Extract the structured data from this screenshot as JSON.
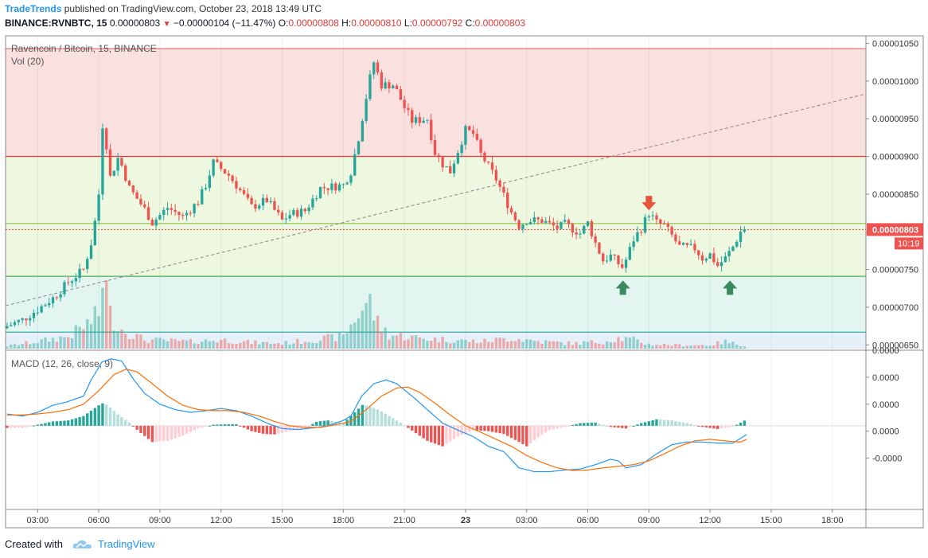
{
  "header": {
    "brand": "TradeTrends",
    "published": "published on TradingView.com, October 23, 2018 13:49 UTC",
    "symbol": "BINANCE:RVNBTC, 15",
    "last": "0.00000803",
    "change_arrow": "▼",
    "change": "−0.00000104 (−11.47%)",
    "o_label": "O:",
    "o": "0.00000808",
    "h_label": "H:",
    "h": "0.00000810",
    "l_label": "L:",
    "l": "0.00000792",
    "c_label": "C:",
    "c": "0.00000803"
  },
  "chart_data": [
    {
      "type": "candlestick",
      "title": "Ravencoin / Bitcoin, 15, BINANCE",
      "volume_label": "Vol (20)",
      "y_ticks": [
        "0.00001050",
        "0.00001000",
        "0.00000950",
        "0.00000900",
        "0.00000850",
        "0.00000800",
        "0.00000750",
        "0.00000700",
        "0.00000650"
      ],
      "y_tick_values": [
        1050,
        1000,
        950,
        900,
        850,
        800,
        750,
        700,
        650
      ],
      "y_unit_scale": 1e-08,
      "ylim": [
        645,
        1060
      ],
      "x_ticks": [
        "03:00",
        "06:00",
        "09:00",
        "12:00",
        "15:00",
        "18:00",
        "21:00",
        "23",
        "03:00",
        "06:00",
        "09:00",
        "12:00",
        "15:00",
        "18:00"
      ],
      "x_tick_positions": [
        2,
        6,
        10,
        14,
        18,
        22,
        26,
        30,
        34,
        38,
        42,
        46,
        50,
        54
      ],
      "x_range_hours": [
        -0.1,
        56.2
      ],
      "last_price_label": "0.00000803",
      "countdown_label": "10:19",
      "horizontal_levels": [
        {
          "price": 1043,
          "color": "#e57373"
        },
        {
          "price": 900,
          "color": "#e53935"
        },
        {
          "price": 811,
          "color": "#8bc34a"
        },
        {
          "price": 741,
          "color": "#4caf50"
        },
        {
          "price": 667,
          "color": "#26a69a"
        }
      ],
      "zones": [
        {
          "from": 900,
          "to": 1043,
          "color": "#fbe0e0"
        },
        {
          "from": 741,
          "to": 900,
          "color": "#eef7df"
        },
        {
          "from": 667,
          "to": 741,
          "color": "#e3f5f1"
        },
        {
          "from": 645,
          "to": 667,
          "color": "#e6f0f8"
        }
      ],
      "trendline": {
        "from": [
          -0.1,
          702
        ],
        "to": [
          56.2,
          983
        ]
      },
      "markers": [
        {
          "type": "arrow-down",
          "color": "#e8553a",
          "at": [
            42,
            835
          ]
        },
        {
          "type": "arrow-up",
          "color": "#3a8a5f",
          "at": [
            40.3,
            727
          ]
        },
        {
          "type": "arrow-up",
          "color": "#3a8a5f",
          "at": [
            47.3,
            727
          ]
        }
      ],
      "close_anchors": [
        [
          0,
          675
        ],
        [
          1,
          683
        ],
        [
          2,
          697
        ],
        [
          3,
          712
        ],
        [
          4,
          733
        ],
        [
          5,
          750
        ],
        [
          5.6,
          792
        ],
        [
          6,
          850
        ],
        [
          6.3,
          960
        ],
        [
          6.7,
          870
        ],
        [
          7.3,
          900
        ],
        [
          8,
          858
        ],
        [
          9,
          830
        ],
        [
          9.5,
          812
        ],
        [
          10.5,
          832
        ],
        [
          11.5,
          820
        ],
        [
          12.5,
          840
        ],
        [
          13,
          862
        ],
        [
          13.5,
          892
        ],
        [
          14.5,
          875
        ],
        [
          15,
          862
        ],
        [
          16,
          833
        ],
        [
          17,
          842
        ],
        [
          18,
          815
        ],
        [
          18.5,
          823
        ],
        [
          19.5,
          828
        ],
        [
          20.5,
          858
        ],
        [
          22,
          862
        ],
        [
          22.5,
          880
        ],
        [
          23,
          925
        ],
        [
          23.7,
          1000
        ],
        [
          24,
          1025
        ],
        [
          24.5,
          995
        ],
        [
          25.3,
          995
        ],
        [
          26,
          965
        ],
        [
          26.5,
          947
        ],
        [
          27.5,
          950
        ],
        [
          28,
          905
        ],
        [
          28.5,
          890
        ],
        [
          29,
          880
        ],
        [
          30,
          935
        ],
        [
          30.5,
          930
        ],
        [
          31,
          903
        ],
        [
          32,
          870
        ],
        [
          33,
          826
        ],
        [
          33.5,
          808
        ],
        [
          34,
          815
        ],
        [
          35,
          815
        ],
        [
          36,
          805
        ],
        [
          36.5,
          810
        ],
        [
          37.5,
          798
        ],
        [
          38,
          812
        ],
        [
          38.5,
          785
        ],
        [
          39,
          762
        ],
        [
          39.5,
          768
        ],
        [
          40.3,
          752
        ],
        [
          41,
          790
        ],
        [
          41.5,
          805
        ],
        [
          42,
          825
        ],
        [
          42.5,
          812
        ],
        [
          43,
          808
        ],
        [
          43.5,
          795
        ],
        [
          44,
          780
        ],
        [
          45,
          778
        ],
        [
          45.5,
          765
        ],
        [
          46,
          770
        ],
        [
          46.5,
          755
        ],
        [
          47,
          765
        ],
        [
          47.5,
          780
        ],
        [
          48,
          800
        ],
        [
          48.4,
          803
        ]
      ],
      "volume_anchors": [
        [
          0,
          3
        ],
        [
          2,
          8
        ],
        [
          4,
          14
        ],
        [
          5,
          25
        ],
        [
          6,
          38
        ],
        [
          6.3,
          95
        ],
        [
          6.7,
          40
        ],
        [
          7.5,
          22
        ],
        [
          9,
          10
        ],
        [
          12,
          8
        ],
        [
          14,
          10
        ],
        [
          16,
          7
        ],
        [
          18,
          6
        ],
        [
          20,
          10
        ],
        [
          22,
          14
        ],
        [
          23.3,
          48
        ],
        [
          23.7,
          55
        ],
        [
          24.2,
          30
        ],
        [
          25,
          16
        ],
        [
          27,
          12
        ],
        [
          29,
          10
        ],
        [
          31,
          8
        ],
        [
          33,
          12
        ],
        [
          35,
          8
        ],
        [
          37,
          6
        ],
        [
          39,
          8
        ],
        [
          40,
          12
        ],
        [
          41,
          10
        ],
        [
          42,
          5
        ],
        [
          44,
          4
        ],
        [
          46,
          4
        ],
        [
          47,
          8
        ],
        [
          48.4,
          3
        ]
      ],
      "volume_max": 100
    },
    {
      "type": "line",
      "title": "MACD (12, 26, close, 9)",
      "y_ticks": [
        "0.0000",
        "0.0000",
        "0.0000",
        "0.0000",
        "-0.0000"
      ],
      "ylim": [
        -1.55,
        1.4
      ],
      "y_tick_values": [
        1.4,
        0.9,
        0.4,
        -0.1,
        -0.6
      ],
      "series": [
        {
          "color": "#2196f3",
          "anchors": [
            [
              0,
              0.22
            ],
            [
              1,
              0.18
            ],
            [
              2,
              0.25
            ],
            [
              3,
              0.38
            ],
            [
              4,
              0.45
            ],
            [
              5,
              0.55
            ],
            [
              5.5,
              0.85
            ],
            [
              6.2,
              1.18
            ],
            [
              6.8,
              1.24
            ],
            [
              7.5,
              1.2
            ],
            [
              8.3,
              0.85
            ],
            [
              9,
              0.6
            ],
            [
              10,
              0.4
            ],
            [
              11,
              0.3
            ],
            [
              12,
              0.25
            ],
            [
              13,
              0.28
            ],
            [
              14,
              0.32
            ],
            [
              15,
              0.28
            ],
            [
              16,
              0.18
            ],
            [
              17,
              0.05
            ],
            [
              18,
              -0.05
            ],
            [
              19,
              -0.07
            ],
            [
              20,
              -0.04
            ],
            [
              21,
              0.0
            ],
            [
              22,
              0.1
            ],
            [
              22.5,
              0.18
            ],
            [
              23.2,
              0.55
            ],
            [
              24,
              0.78
            ],
            [
              24.8,
              0.85
            ],
            [
              25.5,
              0.78
            ],
            [
              26.5,
              0.55
            ],
            [
              27.5,
              0.3
            ],
            [
              28.5,
              0.05
            ],
            [
              29.5,
              -0.08
            ],
            [
              30.5,
              -0.2
            ],
            [
              31.5,
              -0.38
            ],
            [
              32.5,
              -0.48
            ],
            [
              33.5,
              -0.78
            ],
            [
              34.5,
              -0.85
            ],
            [
              35.5,
              -0.85
            ],
            [
              36.5,
              -0.82
            ],
            [
              37.5,
              -0.8
            ],
            [
              38.5,
              -0.72
            ],
            [
              39.5,
              -0.62
            ],
            [
              40,
              -0.65
            ],
            [
              40.5,
              -0.78
            ],
            [
              41.5,
              -0.72
            ],
            [
              42.5,
              -0.52
            ],
            [
              43.5,
              -0.35
            ],
            [
              44.5,
              -0.3
            ],
            [
              45.5,
              -0.3
            ],
            [
              46.5,
              -0.32
            ],
            [
              47.5,
              -0.32
            ],
            [
              48.4,
              -0.16
            ]
          ]
        },
        {
          "color": "#ff6d00",
          "anchors": [
            [
              0,
              0.2
            ],
            [
              1,
              0.2
            ],
            [
              2,
              0.22
            ],
            [
              3,
              0.25
            ],
            [
              4,
              0.3
            ],
            [
              5,
              0.4
            ],
            [
              6,
              0.65
            ],
            [
              7,
              0.95
            ],
            [
              7.8,
              1.05
            ],
            [
              8.5,
              1.0
            ],
            [
              9.5,
              0.78
            ],
            [
              10.5,
              0.55
            ],
            [
              11.5,
              0.38
            ],
            [
              12.5,
              0.3
            ],
            [
              13.5,
              0.28
            ],
            [
              14.5,
              0.28
            ],
            [
              15.5,
              0.25
            ],
            [
              16.5,
              0.18
            ],
            [
              17.5,
              0.08
            ],
            [
              18.5,
              0.0
            ],
            [
              19.5,
              -0.03
            ],
            [
              20.5,
              -0.03
            ],
            [
              21.5,
              0.02
            ],
            [
              22.5,
              0.08
            ],
            [
              23.5,
              0.3
            ],
            [
              24.5,
              0.55
            ],
            [
              25.5,
              0.7
            ],
            [
              26.2,
              0.72
            ],
            [
              27,
              0.62
            ],
            [
              28,
              0.42
            ],
            [
              29,
              0.2
            ],
            [
              30,
              0.0
            ],
            [
              31,
              -0.12
            ],
            [
              32,
              -0.25
            ],
            [
              33,
              -0.38
            ],
            [
              34,
              -0.55
            ],
            [
              35,
              -0.68
            ],
            [
              36,
              -0.78
            ],
            [
              37,
              -0.83
            ],
            [
              38,
              -0.82
            ],
            [
              39,
              -0.78
            ],
            [
              40,
              -0.75
            ],
            [
              41,
              -0.72
            ],
            [
              42,
              -0.65
            ],
            [
              43,
              -0.52
            ],
            [
              44,
              -0.38
            ],
            [
              45,
              -0.28
            ],
            [
              46,
              -0.25
            ],
            [
              47,
              -0.28
            ],
            [
              48,
              -0.3
            ],
            [
              48.4,
              -0.25
            ]
          ]
        }
      ],
      "histogram_anchors": [
        [
          0,
          -0.04
        ],
        [
          1,
          -0.04
        ],
        [
          2,
          0.02
        ],
        [
          3,
          0.08
        ],
        [
          4,
          0.1
        ],
        [
          5,
          0.18
        ],
        [
          6.2,
          0.42
        ],
        [
          6.6,
          0.38
        ],
        [
          7.2,
          0.22
        ],
        [
          8,
          0.06
        ],
        [
          8.6,
          -0.1
        ],
        [
          9.5,
          -0.3
        ],
        [
          10.5,
          -0.28
        ],
        [
          11.5,
          -0.18
        ],
        [
          12.5,
          -0.05
        ],
        [
          13.5,
          0.02
        ],
        [
          14.5,
          0.03
        ],
        [
          15,
          0.03
        ],
        [
          16,
          -0.1
        ],
        [
          16.8,
          -0.15
        ],
        [
          17.5,
          -0.16
        ],
        [
          18.5,
          -0.1
        ],
        [
          19.5,
          -0.04
        ],
        [
          20.3,
          0.08
        ],
        [
          21,
          0.1
        ],
        [
          22,
          0.05
        ],
        [
          23.3,
          0.4
        ],
        [
          24.3,
          0.3
        ],
        [
          25,
          0.18
        ],
        [
          25.8,
          0.05
        ],
        [
          26.3,
          -0.05
        ],
        [
          27.5,
          -0.28
        ],
        [
          28.5,
          -0.38
        ],
        [
          29.5,
          -0.2
        ],
        [
          30.5,
          -0.08
        ],
        [
          31.5,
          -0.1
        ],
        [
          32.5,
          -0.15
        ],
        [
          33.5,
          -0.3
        ],
        [
          34,
          -0.38
        ],
        [
          34.8,
          -0.2
        ],
        [
          35.5,
          -0.08
        ],
        [
          36.5,
          -0.02
        ],
        [
          37.5,
          0.05
        ],
        [
          38.5,
          0.06
        ],
        [
          39.5,
          -0.02
        ],
        [
          40.5,
          -0.05
        ],
        [
          41.5,
          0.05
        ],
        [
          42.5,
          0.12
        ],
        [
          43.5,
          0.1
        ],
        [
          44.5,
          0.05
        ],
        [
          45.5,
          -0.02
        ],
        [
          46.5,
          -0.06
        ],
        [
          47.5,
          -0.02
        ],
        [
          48.4,
          0.12
        ]
      ]
    }
  ],
  "footer": {
    "created_with": "Created with",
    "tradingview": "TradingView",
    "logo_icon": "tradingview-cloud-icon"
  }
}
